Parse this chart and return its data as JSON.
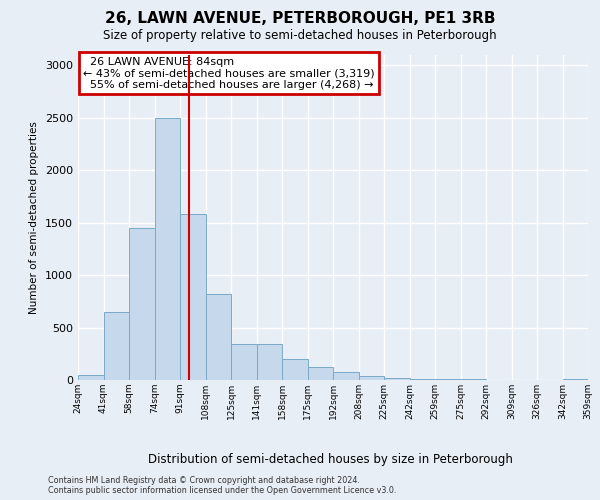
{
  "title": "26, LAWN AVENUE, PETERBOROUGH, PE1 3RB",
  "subtitle": "Size of property relative to semi-detached houses in Peterborough",
  "xlabel": "Distribution of semi-detached houses by size in Peterborough",
  "ylabel": "Number of semi-detached properties",
  "footnote": "Contains HM Land Registry data © Crown copyright and database right 2024.\nContains public sector information licensed under the Open Government Licence v3.0.",
  "property_label": "26 LAWN AVENUE: 84sqm",
  "pct_smaller": 43,
  "count_smaller": 3319,
  "pct_larger": 55,
  "count_larger": 4268,
  "vline_bin": 4.35,
  "bar_color": "#c5d8ec",
  "bar_edge_color": "#7aaac8",
  "vline_color": "#cc0000",
  "annotation_box_edgecolor": "#cc0000",
  "background_color": "#e8eef6",
  "grid_color": "#ffffff",
  "n_bins": 20,
  "bin_labels": [
    "24sqm",
    "41sqm",
    "58sqm",
    "74sqm",
    "91sqm",
    "108sqm",
    "125sqm",
    "141sqm",
    "158sqm",
    "175sqm",
    "192sqm",
    "208sqm",
    "225sqm",
    "242sqm",
    "259sqm",
    "275sqm",
    "292sqm",
    "309sqm",
    "326sqm",
    "342sqm",
    "359sqm"
  ],
  "bar_heights": [
    50,
    650,
    1450,
    2500,
    1580,
    820,
    340,
    340,
    200,
    120,
    75,
    40,
    20,
    10,
    5,
    5,
    3,
    3,
    2,
    5
  ],
  "ylim": [
    0,
    3100
  ],
  "yticks": [
    0,
    500,
    1000,
    1500,
    2000,
    2500,
    3000
  ]
}
